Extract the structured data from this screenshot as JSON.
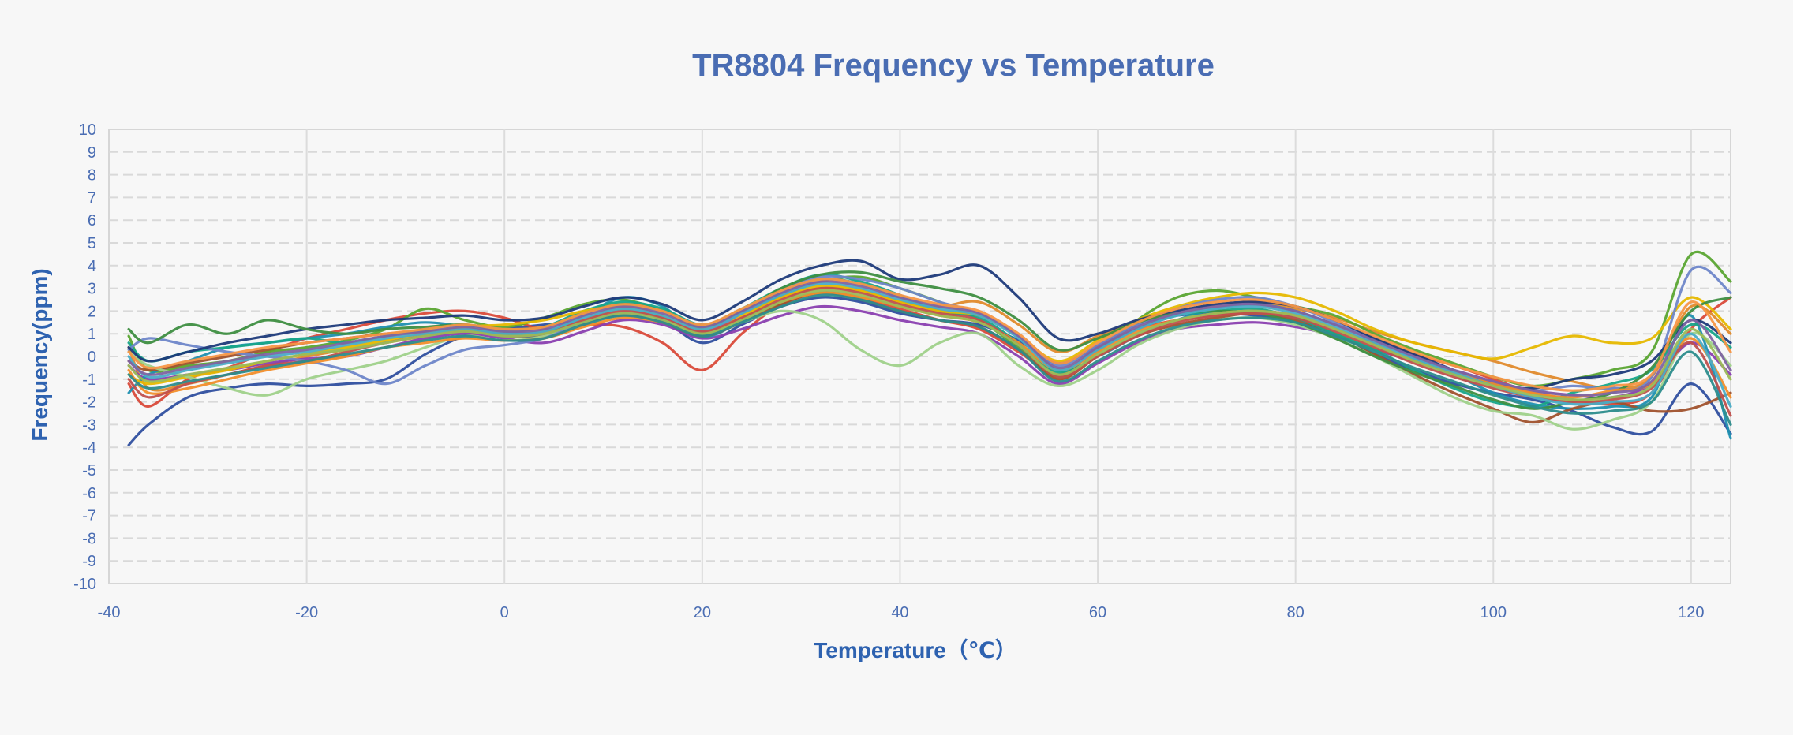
{
  "chart_data": {
    "type": "line",
    "title": "TR8804 Frequency vs Temperature",
    "xlabel": "Temperature（℃）",
    "ylabel": "Frequency(ppm)",
    "xlim": [
      -40,
      124
    ],
    "ylim": [
      -10,
      10
    ],
    "xticks": [
      -40,
      -20,
      0,
      20,
      40,
      60,
      80,
      100,
      120
    ],
    "yticks": [
      -10,
      -9,
      -8,
      -7,
      -6,
      -5,
      -4,
      -3,
      -2,
      -1,
      0,
      1,
      2,
      3,
      4,
      5,
      6,
      7,
      8,
      9,
      10
    ],
    "grid": {
      "horizontal": "dashed",
      "vertical": "solid"
    },
    "legend": "none",
    "x": [
      -38,
      -36,
      -32,
      -28,
      -24,
      -20,
      -16,
      -12,
      -8,
      -4,
      0,
      4,
      8,
      12,
      16,
      20,
      24,
      28,
      32,
      36,
      40,
      44,
      48,
      52,
      56,
      60,
      64,
      68,
      72,
      76,
      80,
      84,
      88,
      92,
      96,
      100,
      104,
      108,
      112,
      116,
      120,
      124
    ],
    "series": [
      {
        "color": "#2f4f9f",
        "values": [
          -3.9,
          -3.0,
          -1.8,
          -1.4,
          -1.2,
          -1.3,
          -1.2,
          -1.0,
          0.1,
          0.9,
          1.2,
          1.4,
          1.6,
          2.1,
          1.6,
          0.6,
          1.4,
          2.2,
          2.6,
          2.4,
          1.9,
          1.6,
          1.4,
          0.7,
          -0.3,
          0.5,
          1.4,
          1.8,
          1.9,
          1.8,
          1.5,
          1.0,
          0.1,
          -0.6,
          -1.2,
          -1.6,
          -1.9,
          -2.4,
          -3.1,
          -3.3,
          -1.2,
          -3.4
        ]
      },
      {
        "color": "#d94a3a",
        "values": [
          -1.2,
          -2.2,
          -1.0,
          -0.5,
          0.2,
          0.8,
          1.2,
          1.6,
          1.9,
          2.0,
          1.7,
          1.2,
          1.4,
          1.3,
          0.6,
          -0.6,
          1.0,
          2.3,
          2.8,
          2.6,
          2.1,
          1.6,
          1.2,
          0.2,
          -0.8,
          0.4,
          1.2,
          1.6,
          1.8,
          2.0,
          1.8,
          1.2,
          0.6,
          0.1,
          -0.4,
          -1.0,
          -1.6,
          -1.9,
          -2.1,
          -1.6,
          1.2,
          2.6
        ]
      },
      {
        "color": "#e08a2c",
        "values": [
          0.4,
          -1.4,
          -1.2,
          -0.8,
          -0.4,
          0.0,
          0.3,
          0.6,
          0.9,
          1.2,
          1.0,
          0.9,
          1.6,
          2.2,
          1.8,
          1.2,
          1.9,
          2.6,
          3.0,
          2.9,
          2.4,
          2.2,
          2.4,
          1.4,
          0.2,
          0.9,
          1.5,
          1.9,
          2.2,
          2.4,
          2.1,
          1.7,
          1.1,
          0.6,
          0.2,
          -0.2,
          -0.7,
          -1.1,
          -1.4,
          -0.9,
          2.2,
          1.0
        ]
      },
      {
        "color": "#5aa532",
        "values": [
          0.9,
          -0.6,
          -0.4,
          -0.2,
          0.2,
          0.4,
          0.7,
          1.2,
          2.1,
          1.6,
          1.3,
          1.7,
          2.3,
          2.5,
          2.0,
          1.4,
          2.0,
          2.7,
          3.3,
          3.5,
          3.0,
          2.4,
          1.6,
          0.4,
          -0.9,
          0.2,
          1.6,
          2.6,
          2.9,
          2.6,
          2.2,
          1.8,
          1.0,
          0.3,
          -0.3,
          -0.9,
          -1.3,
          -1.0,
          -0.6,
          0.2,
          4.5,
          3.3
        ]
      },
      {
        "color": "#8a3fb0",
        "values": [
          -0.4,
          -1.0,
          -0.8,
          -0.6,
          -0.3,
          -0.1,
          0.0,
          0.4,
          0.8,
          1.0,
          0.8,
          0.6,
          1.1,
          1.6,
          1.4,
          0.8,
          1.2,
          1.8,
          2.2,
          2.0,
          1.6,
          1.3,
          1.0,
          0.0,
          -1.2,
          -0.3,
          0.6,
          1.2,
          1.4,
          1.5,
          1.3,
          0.9,
          0.3,
          -0.2,
          -0.6,
          -1.1,
          -1.5,
          -1.7,
          -1.8,
          -1.2,
          0.6,
          -0.8
        ]
      },
      {
        "color": "#1f8fb0",
        "values": [
          -1.6,
          -0.8,
          -0.2,
          0.4,
          0.6,
          0.8,
          1.0,
          1.3,
          1.5,
          1.3,
          0.9,
          1.0,
          1.8,
          2.6,
          2.2,
          0.9,
          1.6,
          2.8,
          3.4,
          3.2,
          2.6,
          2.0,
          1.8,
          0.9,
          -0.6,
          0.0,
          0.9,
          1.6,
          2.1,
          2.3,
          2.0,
          1.4,
          0.8,
          -0.1,
          -0.8,
          -1.6,
          -2.1,
          -2.3,
          -2.2,
          -1.8,
          1.8,
          -3.6
        ]
      },
      {
        "color": "#a0522d",
        "values": [
          -0.2,
          -0.6,
          -0.3,
          0.0,
          0.3,
          0.6,
          0.8,
          1.0,
          1.1,
          1.2,
          1.0,
          1.1,
          1.5,
          1.8,
          1.5,
          0.9,
          1.5,
          2.3,
          2.8,
          2.5,
          2.0,
          1.6,
          1.3,
          0.3,
          -1.0,
          0.0,
          0.9,
          1.4,
          1.7,
          1.9,
          1.6,
          1.0,
          0.1,
          -0.8,
          -1.6,
          -2.3,
          -2.9,
          -2.3,
          -2.0,
          -2.4,
          -2.3,
          -1.6
        ]
      },
      {
        "color": "#17a589",
        "values": [
          0.6,
          -0.2,
          0.2,
          0.4,
          0.6,
          0.8,
          0.6,
          0.9,
          1.2,
          1.4,
          1.1,
          1.3,
          2.0,
          2.4,
          2.1,
          1.4,
          2.1,
          3.0,
          3.6,
          3.3,
          2.7,
          2.0,
          1.7,
          0.6,
          -0.7,
          0.3,
          1.2,
          1.8,
          2.0,
          2.1,
          1.7,
          1.0,
          0.3,
          -0.6,
          -1.4,
          -2.0,
          -2.2,
          -1.6,
          -1.2,
          -0.6,
          1.4,
          0.4
        ]
      },
      {
        "color": "#e6b800",
        "values": [
          -0.8,
          -1.2,
          -0.9,
          -0.6,
          -0.2,
          0.1,
          0.4,
          0.7,
          1.0,
          1.3,
          1.4,
          1.6,
          2.0,
          2.2,
          1.8,
          1.2,
          1.8,
          2.6,
          3.1,
          2.9,
          2.4,
          2.0,
          1.8,
          0.9,
          -0.2,
          0.7,
          1.6,
          2.2,
          2.6,
          2.8,
          2.6,
          2.0,
          1.2,
          0.6,
          0.2,
          -0.1,
          0.4,
          0.9,
          0.6,
          0.8,
          2.6,
          1.2
        ]
      },
      {
        "color": "#9fd18a",
        "values": [
          0.2,
          -0.4,
          -0.9,
          -1.4,
          -1.7,
          -1.0,
          -0.6,
          -0.2,
          0.4,
          0.9,
          0.7,
          0.9,
          1.6,
          2.1,
          1.7,
          1.0,
          1.5,
          2.0,
          1.6,
          0.3,
          -0.4,
          0.6,
          1.0,
          -0.4,
          -1.3,
          -0.6,
          0.5,
          1.2,
          1.6,
          1.7,
          1.4,
          0.8,
          0.0,
          -0.9,
          -1.8,
          -2.4,
          -2.6,
          -3.2,
          -2.8,
          -2.0,
          1.0,
          -0.4
        ]
      },
      {
        "color": "#6e86c9",
        "values": [
          0.3,
          0.8,
          0.5,
          0.2,
          0.0,
          -0.2,
          -0.6,
          -1.2,
          -0.4,
          0.3,
          0.5,
          0.8,
          1.5,
          1.9,
          1.7,
          1.1,
          1.9,
          2.9,
          3.5,
          3.4,
          3.0,
          2.4,
          1.9,
          0.9,
          -0.4,
          0.5,
          1.4,
          2.1,
          2.5,
          2.6,
          2.2,
          1.5,
          0.7,
          0.0,
          -0.6,
          -1.2,
          -1.5,
          -1.3,
          -1.4,
          -0.9,
          3.8,
          2.8
        ]
      },
      {
        "color": "#1e3a7a",
        "values": [
          0.4,
          -0.2,
          0.2,
          0.6,
          0.9,
          1.2,
          1.4,
          1.6,
          1.7,
          1.8,
          1.6,
          1.7,
          2.2,
          2.6,
          2.3,
          1.6,
          2.4,
          3.4,
          4.0,
          4.2,
          3.4,
          3.6,
          4.0,
          2.6,
          0.8,
          1.0,
          1.6,
          2.0,
          2.3,
          2.4,
          2.2,
          1.6,
          0.8,
          0.1,
          -0.6,
          -1.2,
          -1.4,
          -1.0,
          -0.8,
          -0.2,
          1.6,
          0.6
        ]
      },
      {
        "color": "#3e8e41",
        "values": [
          1.2,
          0.6,
          1.4,
          1.0,
          1.6,
          1.2,
          1.0,
          1.2,
          1.3,
          1.4,
          1.2,
          1.3,
          1.9,
          2.3,
          2.0,
          1.3,
          2.0,
          3.0,
          3.6,
          3.7,
          3.3,
          3.0,
          2.6,
          1.6,
          0.3,
          0.8,
          1.5,
          1.9,
          2.0,
          1.9,
          1.5,
          0.8,
          0.0,
          -0.7,
          -1.3,
          -1.9,
          -2.3,
          -2.0,
          -1.6,
          -0.5,
          2.0,
          2.6
        ]
      },
      {
        "color": "#f28e2b",
        "values": [
          -0.6,
          -1.6,
          -1.4,
          -1.0,
          -0.6,
          -0.3,
          0.0,
          0.4,
          0.6,
          0.8,
          0.7,
          0.8,
          1.3,
          1.7,
          1.5,
          1.0,
          1.7,
          2.4,
          2.8,
          2.6,
          2.2,
          1.8,
          1.5,
          0.6,
          -0.6,
          0.2,
          1.1,
          1.6,
          1.9,
          2.0,
          1.8,
          1.2,
          0.5,
          -0.2,
          -0.7,
          -1.2,
          -1.6,
          -1.8,
          -1.5,
          -1.2,
          0.8,
          -1.8
        ]
      },
      {
        "color": "#c0504d",
        "values": [
          -1.0,
          -1.8,
          -1.2,
          -0.8,
          -0.4,
          -0.2,
          0.2,
          0.6,
          0.9,
          1.1,
          0.9,
          1.0,
          1.6,
          2.0,
          1.7,
          1.1,
          1.7,
          2.5,
          3.0,
          2.8,
          2.3,
          1.9,
          1.6,
          0.5,
          -0.9,
          0.0,
          0.9,
          1.5,
          1.8,
          1.9,
          1.7,
          1.1,
          0.4,
          -0.3,
          -0.9,
          -1.4,
          -1.8,
          -2.0,
          -1.9,
          -1.4,
          0.6,
          -2.6
        ]
      },
      {
        "color": "#4bacc6",
        "values": [
          0.0,
          -0.9,
          -0.6,
          -0.3,
          0.0,
          0.2,
          0.5,
          0.8,
          1.0,
          1.2,
          1.0,
          1.1,
          1.7,
          2.1,
          1.8,
          1.2,
          1.9,
          2.7,
          3.2,
          3.0,
          2.5,
          2.1,
          1.8,
          0.8,
          -0.6,
          0.3,
          1.2,
          1.8,
          2.1,
          2.2,
          1.9,
          1.3,
          0.6,
          -0.1,
          -0.7,
          -1.3,
          -1.8,
          -2.1,
          -2.0,
          -1.6,
          1.0,
          -2.2
        ]
      },
      {
        "color": "#9bbb59",
        "values": [
          -0.4,
          -1.1,
          -0.8,
          -0.5,
          -0.2,
          0.1,
          0.3,
          0.6,
          0.9,
          1.1,
          0.9,
          1.0,
          1.5,
          1.9,
          1.6,
          1.0,
          1.6,
          2.4,
          2.9,
          2.7,
          2.2,
          1.8,
          1.5,
          0.5,
          -0.8,
          0.1,
          1.0,
          1.6,
          1.9,
          2.0,
          1.8,
          1.2,
          0.5,
          -0.2,
          -0.8,
          -1.3,
          -1.7,
          -1.9,
          -1.8,
          -1.3,
          1.2,
          -1.0
        ]
      },
      {
        "color": "#8064a2",
        "values": [
          -0.2,
          -0.8,
          -0.5,
          -0.2,
          0.1,
          0.3,
          0.6,
          0.9,
          1.1,
          1.3,
          1.1,
          1.2,
          1.8,
          2.2,
          1.9,
          1.3,
          2.0,
          2.8,
          3.3,
          3.1,
          2.6,
          2.2,
          1.9,
          0.9,
          -0.5,
          0.4,
          1.3,
          1.9,
          2.2,
          2.3,
          2.0,
          1.4,
          0.7,
          0.0,
          -0.6,
          -1.1,
          -1.5,
          -1.7,
          -1.6,
          -1.1,
          1.6,
          -0.6
        ]
      },
      {
        "color": "#f79646",
        "values": [
          0.2,
          -0.5,
          -0.2,
          0.1,
          0.4,
          0.6,
          0.8,
          1.0,
          1.2,
          1.4,
          1.2,
          1.3,
          1.9,
          2.3,
          2.0,
          1.4,
          2.1,
          2.9,
          3.4,
          3.2,
          2.7,
          2.3,
          2.0,
          1.0,
          -0.3,
          0.6,
          1.5,
          2.1,
          2.4,
          2.5,
          2.2,
          1.6,
          0.9,
          0.2,
          -0.4,
          -0.9,
          -1.3,
          -1.5,
          -1.3,
          -0.8,
          2.4,
          0.2
        ]
      },
      {
        "color": "#2c8c8c",
        "values": [
          -0.8,
          -1.4,
          -1.1,
          -0.8,
          -0.5,
          -0.2,
          0.1,
          0.4,
          0.7,
          0.9,
          0.7,
          0.8,
          1.4,
          1.8,
          1.5,
          0.9,
          1.5,
          2.2,
          2.7,
          2.5,
          2.0,
          1.6,
          1.3,
          0.3,
          -1.1,
          -0.2,
          0.7,
          1.3,
          1.6,
          1.7,
          1.5,
          0.9,
          0.2,
          -0.5,
          -1.1,
          -1.7,
          -2.2,
          -2.5,
          -2.4,
          -2.0,
          0.2,
          -3.0
        ]
      }
    ]
  }
}
